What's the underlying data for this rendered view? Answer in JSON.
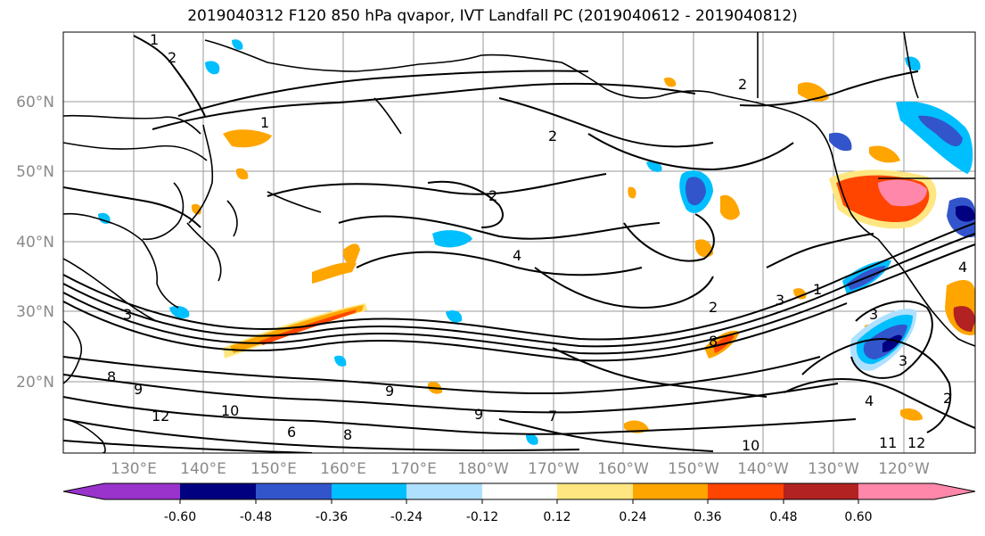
{
  "title": "2019040312 F120 850 hPa qvapor, IVT Landfall PC (2019040612 - 2019040812)",
  "lat_ticks": [
    "60°N",
    "50°N",
    "40°N",
    "30°N",
    "20°N"
  ],
  "lon_ticks": [
    "130°E",
    "140°E",
    "150°E",
    "160°E",
    "170°E",
    "180°W",
    "170°W",
    "160°W",
    "150°W",
    "140°W",
    "130°W",
    "120°W"
  ],
  "colorbar": {
    "colors": [
      "#9933cc",
      "#000080",
      "#3355cc",
      "#00bfff",
      "#b0e0ff",
      "#ffffff",
      "#ffe680",
      "#ffa500",
      "#ff4500",
      "#b22222",
      "#ff88aa"
    ],
    "labels": [
      "-0.60",
      "-0.48",
      "-0.36",
      "-0.24",
      "-0.12",
      "0.12",
      "0.24",
      "0.36",
      "0.48",
      "0.60"
    ]
  },
  "contour_labels": [
    "1",
    "2",
    "2",
    "1",
    "2",
    "2",
    "3",
    "4",
    "2",
    "3",
    "3",
    "4",
    "8",
    "9",
    "10",
    "12",
    "8",
    "9",
    "7",
    "6",
    "8",
    "9",
    "10",
    "11",
    "12",
    "3",
    "1",
    "2",
    "4"
  ],
  "colors": {
    "positive": [
      "#ffe680",
      "#ffa500",
      "#ff4500",
      "#b22222",
      "#ff88aa"
    ],
    "negative": [
      "#b0e0ff",
      "#00bfff",
      "#3355cc",
      "#000080"
    ]
  }
}
